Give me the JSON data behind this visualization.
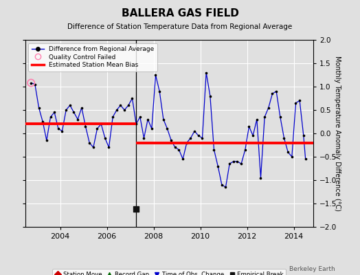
{
  "title": "BALLERA GAS FIELD",
  "subtitle": "Difference of Station Temperature Data from Regional Average",
  "ylabel": "Monthly Temperature Anomaly Difference (°C)",
  "ylim": [
    -2,
    2
  ],
  "yticks": [
    -2,
    -1.5,
    -1,
    -0.5,
    0,
    0.5,
    1,
    1.5,
    2
  ],
  "xlim": [
    2002.5,
    2014.83
  ],
  "xticks": [
    2004,
    2006,
    2008,
    2010,
    2012,
    2014
  ],
  "break_x": 2007.25,
  "segment1_bias": 0.21,
  "segment1_xstart": 2002.5,
  "segment1_xend": 2007.25,
  "segment2_bias": -0.2,
  "segment2_xstart": 2007.25,
  "segment2_xend": 2014.83,
  "empirical_break_x": 2007.25,
  "empirical_break_y": -1.62,
  "background_color": "#e0e0e0",
  "grid_color": "#ffffff",
  "line_color": "#0000cc",
  "bias_color": "#ff0000",
  "qc_fail_x": 2002.75,
  "qc_fail_y": 1.08,
  "watermark": "Berkeley Earth",
  "monthly_data": [
    [
      2002.75,
      1.08
    ],
    [
      2002.917,
      1.05
    ],
    [
      2003.083,
      0.55
    ],
    [
      2003.25,
      0.25
    ],
    [
      2003.417,
      -0.15
    ],
    [
      2003.583,
      0.35
    ],
    [
      2003.75,
      0.45
    ],
    [
      2003.917,
      0.1
    ],
    [
      2004.083,
      0.05
    ],
    [
      2004.25,
      0.5
    ],
    [
      2004.417,
      0.6
    ],
    [
      2004.583,
      0.45
    ],
    [
      2004.75,
      0.3
    ],
    [
      2004.917,
      0.55
    ],
    [
      2005.083,
      0.15
    ],
    [
      2005.25,
      -0.2
    ],
    [
      2005.417,
      -0.3
    ],
    [
      2005.583,
      0.1
    ],
    [
      2005.75,
      0.2
    ],
    [
      2005.917,
      -0.1
    ],
    [
      2006.083,
      -0.3
    ],
    [
      2006.25,
      0.35
    ],
    [
      2006.417,
      0.5
    ],
    [
      2006.583,
      0.6
    ],
    [
      2006.75,
      0.5
    ],
    [
      2006.917,
      0.6
    ],
    [
      2007.083,
      0.75
    ],
    [
      2007.25,
      0.2
    ],
    [
      2007.417,
      0.35
    ],
    [
      2007.583,
      -0.1
    ],
    [
      2007.75,
      0.3
    ],
    [
      2007.917,
      0.1
    ],
    [
      2008.083,
      1.25
    ],
    [
      2008.25,
      0.9
    ],
    [
      2008.417,
      0.3
    ],
    [
      2008.583,
      0.1
    ],
    [
      2008.75,
      -0.15
    ],
    [
      2008.917,
      -0.3
    ],
    [
      2009.083,
      -0.35
    ],
    [
      2009.25,
      -0.55
    ],
    [
      2009.417,
      -0.2
    ],
    [
      2009.583,
      -0.1
    ],
    [
      2009.75,
      0.05
    ],
    [
      2009.917,
      -0.05
    ],
    [
      2010.083,
      -0.1
    ],
    [
      2010.25,
      1.3
    ],
    [
      2010.417,
      0.8
    ],
    [
      2010.583,
      -0.35
    ],
    [
      2010.75,
      -0.7
    ],
    [
      2010.917,
      -1.1
    ],
    [
      2011.083,
      -1.15
    ],
    [
      2011.25,
      -0.65
    ],
    [
      2011.417,
      -0.6
    ],
    [
      2011.583,
      -0.6
    ],
    [
      2011.75,
      -0.65
    ],
    [
      2011.917,
      -0.35
    ],
    [
      2012.083,
      0.15
    ],
    [
      2012.25,
      -0.05
    ],
    [
      2012.417,
      0.3
    ],
    [
      2012.583,
      -0.95
    ],
    [
      2012.75,
      0.35
    ],
    [
      2012.917,
      0.55
    ],
    [
      2013.083,
      0.85
    ],
    [
      2013.25,
      0.9
    ],
    [
      2013.417,
      0.35
    ],
    [
      2013.583,
      -0.1
    ],
    [
      2013.75,
      -0.4
    ],
    [
      2013.917,
      -0.5
    ],
    [
      2014.083,
      0.65
    ],
    [
      2014.25,
      0.7
    ],
    [
      2014.417,
      -0.05
    ],
    [
      2014.5,
      -0.55
    ]
  ],
  "legend_bottom": [
    {
      "marker": "D",
      "color": "#cc0000",
      "label": "Station Move"
    },
    {
      "marker": "^",
      "color": "#006600",
      "label": "Record Gap"
    },
    {
      "marker": "v",
      "color": "#0000cc",
      "label": "Time of Obs. Change"
    },
    {
      "marker": "s",
      "color": "#111111",
      "label": "Empirical Break"
    }
  ]
}
